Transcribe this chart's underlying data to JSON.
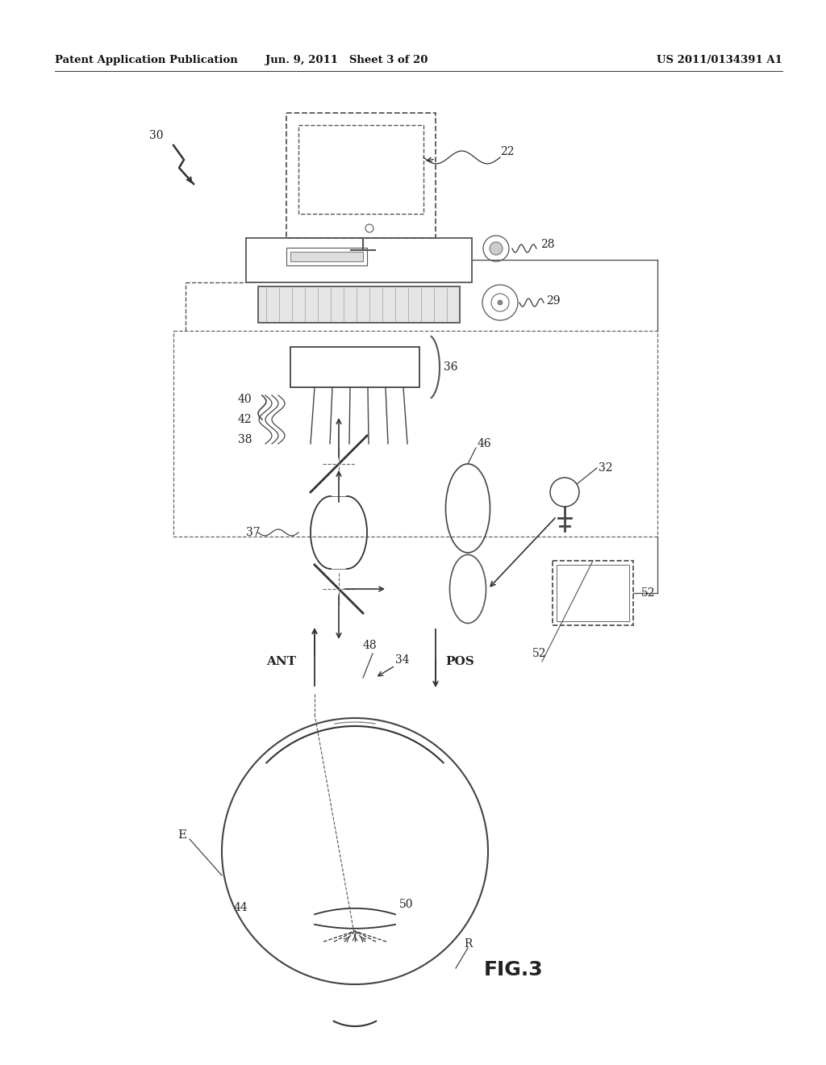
{
  "bg_color": "#ffffff",
  "header_left": "Patent Application Publication",
  "header_mid": "Jun. 9, 2011   Sheet 3 of 20",
  "header_right": "US 2011/0134391 A1",
  "figure_label": "FIG.3",
  "line_color": "#333333",
  "gray_color": "#555555"
}
